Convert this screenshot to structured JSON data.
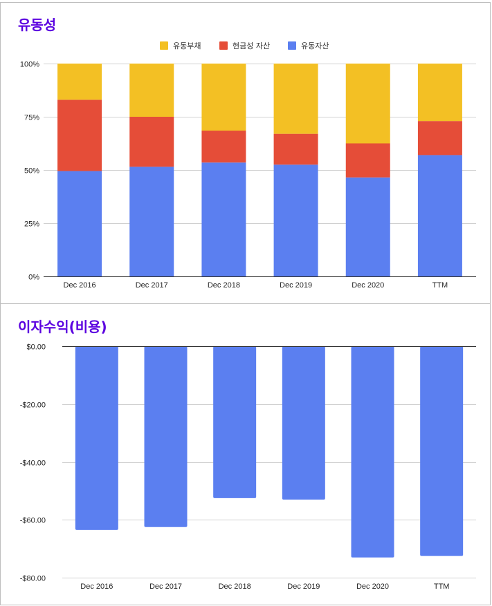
{
  "colors": {
    "current_liabilities": "#f3c024",
    "cash_assets": "#e54d38",
    "current_assets": "#5b7ff0",
    "title": "#5b00e0"
  },
  "chart_data": [
    {
      "type": "bar",
      "stacked": true,
      "percent": true,
      "title": "유동성",
      "categories": [
        "Dec 2016",
        "Dec 2017",
        "Dec 2018",
        "Dec 2019",
        "Dec 2020",
        "TTM"
      ],
      "series": [
        {
          "name": "유동자산",
          "color": "#5b7ff0",
          "values": [
            49.5,
            51.5,
            53.5,
            52.5,
            46.5,
            57.0
          ]
        },
        {
          "name": "현금성 자산",
          "color": "#e54d38",
          "values": [
            33.5,
            23.5,
            15.0,
            14.5,
            16.0,
            16.0
          ]
        },
        {
          "name": "유동부채",
          "color": "#f3c024",
          "values": [
            17.0,
            25.0,
            31.5,
            33.0,
            37.5,
            27.0
          ]
        }
      ],
      "legend_order": [
        "유동부채",
        "현금성 자산",
        "유동자산"
      ],
      "legend_position": "top-center",
      "y_ticks": [
        "0%",
        "25%",
        "50%",
        "75%",
        "100%"
      ],
      "ylim": [
        0,
        100
      ]
    },
    {
      "type": "bar",
      "title": "이자수익(비용)",
      "categories": [
        "Dec 2016",
        "Dec 2017",
        "Dec 2018",
        "Dec 2019",
        "Dec 2020",
        "TTM"
      ],
      "series": [
        {
          "name": "이자수익(비용)",
          "color": "#5b7ff0",
          "values": [
            -63.5,
            -62.5,
            -52.5,
            -53.0,
            -73.0,
            -72.5
          ]
        }
      ],
      "y_ticks": [
        "$0.00",
        "-$20.00",
        "-$40.00",
        "-$60.00",
        "-$80.00"
      ],
      "ylim": [
        -80,
        0
      ]
    }
  ]
}
